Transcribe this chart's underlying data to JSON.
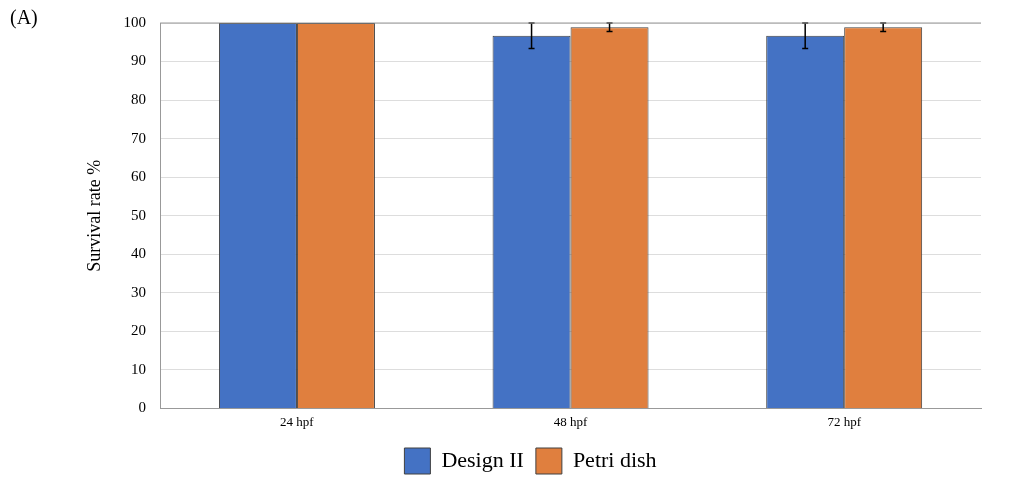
{
  "chart_data": {
    "type": "bar",
    "ylabel": "Survival rate %",
    "annotations": [
      "(A)"
    ],
    "categories": [
      "24 hpf",
      "48 hpf",
      "72 hpf"
    ],
    "series": [
      {
        "name": "Design II",
        "color": "#4472c4",
        "values": [
          100,
          96.7,
          96.7
        ],
        "errors": [
          null,
          3.3,
          3.3
        ]
      },
      {
        "name": "Petri dish",
        "color": "#e07f3e",
        "values": [
          100,
          98.9,
          98.9
        ],
        "errors": [
          null,
          1.1,
          1.1
        ]
      }
    ],
    "ylim": [
      0,
      100
    ],
    "yticks": [
      0,
      10,
      20,
      30,
      40,
      50,
      60,
      70,
      80,
      90,
      100
    ],
    "grid": "y",
    "legend": "bottom"
  }
}
